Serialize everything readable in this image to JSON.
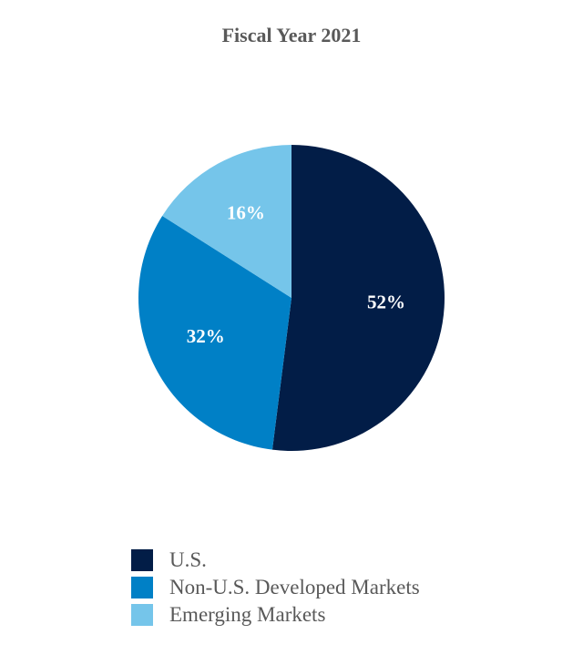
{
  "chart_data": {
    "type": "pie",
    "title": "Fiscal Year 2021",
    "slices": [
      {
        "label": "U.S.",
        "value": 52,
        "display": "52%",
        "color": "#021d47"
      },
      {
        "label": "Non-U.S. Developed Markets",
        "value": 32,
        "display": "32%",
        "color": "#0080c6"
      },
      {
        "label": "Emerging Markets",
        "value": 16,
        "display": "16%",
        "color": "#75c5ea"
      }
    ],
    "start": "12 o'clock",
    "direction": "clockwise",
    "legend_position": "bottom"
  }
}
